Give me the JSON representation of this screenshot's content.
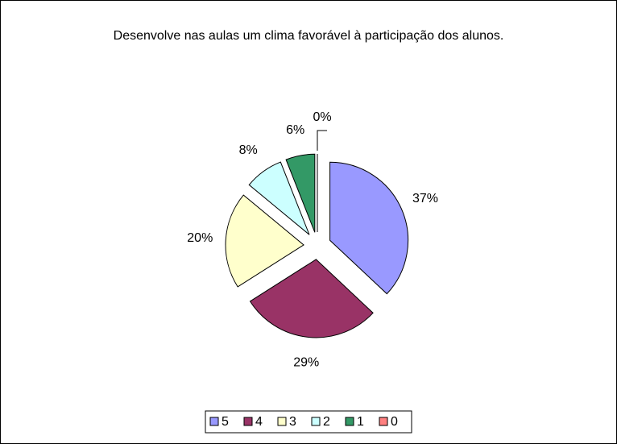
{
  "chart_data": {
    "type": "pie",
    "title": "Desenvolve nas aulas um clima favorável à participação dos alunos.",
    "categories": [
      "5",
      "4",
      "3",
      "2",
      "1",
      "0"
    ],
    "values": [
      37,
      29,
      20,
      8,
      6,
      0
    ],
    "value_labels": [
      "37%",
      "29%",
      "20%",
      "8%",
      "6%",
      "0%"
    ],
    "colors": [
      "#9999ff",
      "#993366",
      "#ffffcc",
      "#ccffff",
      "#339966",
      "#ff8080"
    ],
    "legend": "bottom"
  }
}
